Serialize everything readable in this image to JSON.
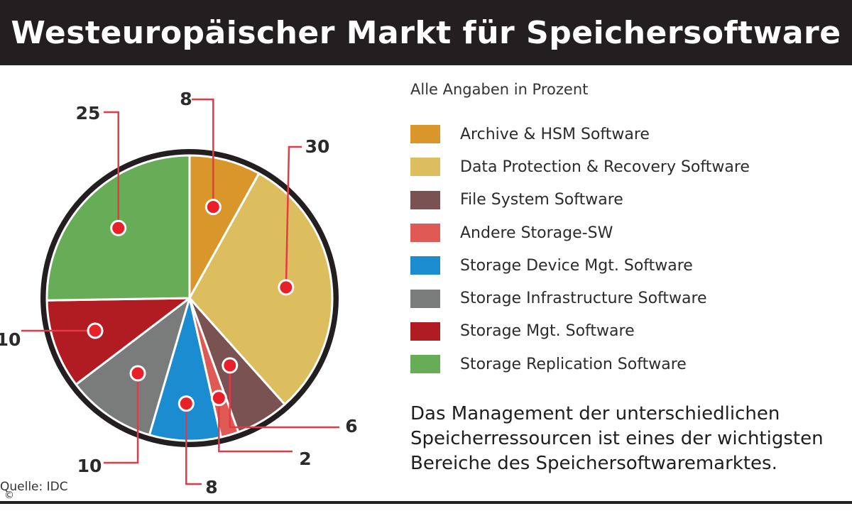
{
  "title": "Westeuropäischer Markt für Speichersoftware",
  "legend_title": "Alle Angaben in Prozent",
  "note_lines": [
    "Das Management der unterschiedlichen",
    "Speicherressourcen ist eines der wichtigsten",
    "Bereiche des Speichersoftwaremarktes."
  ],
  "source": "Quelle: IDC",
  "copyright_symbol": "©",
  "colors": {
    "title_bar": "#231f20",
    "leader_line": "#e63946",
    "dot": "#e8202a",
    "pie_border": "#231f20"
  },
  "chart_data": {
    "type": "pie",
    "title": "Westeuropäischer Markt für Speichersoftware",
    "unit": "Prozent",
    "slices": [
      {
        "name": "Archive & HSM Software",
        "value": 8,
        "color": "#d9962b"
      },
      {
        "name": "Data Protection & Recovery Software",
        "value": 30,
        "color": "#dcbe5e"
      },
      {
        "name": "File System Software",
        "value": 6,
        "color": "#7a5251"
      },
      {
        "name": "Andere Storage-SW",
        "value": 2,
        "color": "#e05a55"
      },
      {
        "name": "Storage Device Mgt. Software",
        "value": 8,
        "color": "#1a8ccf"
      },
      {
        "name": "Storage Infrastructure Software",
        "value": 10,
        "color": "#7a7c7b"
      },
      {
        "name": "Storage Mgt. Software",
        "value": 10,
        "color": "#b01c22"
      },
      {
        "name": "Storage Replication Software",
        "value": 25,
        "color": "#67ad58"
      }
    ],
    "legend_placement": "right"
  }
}
